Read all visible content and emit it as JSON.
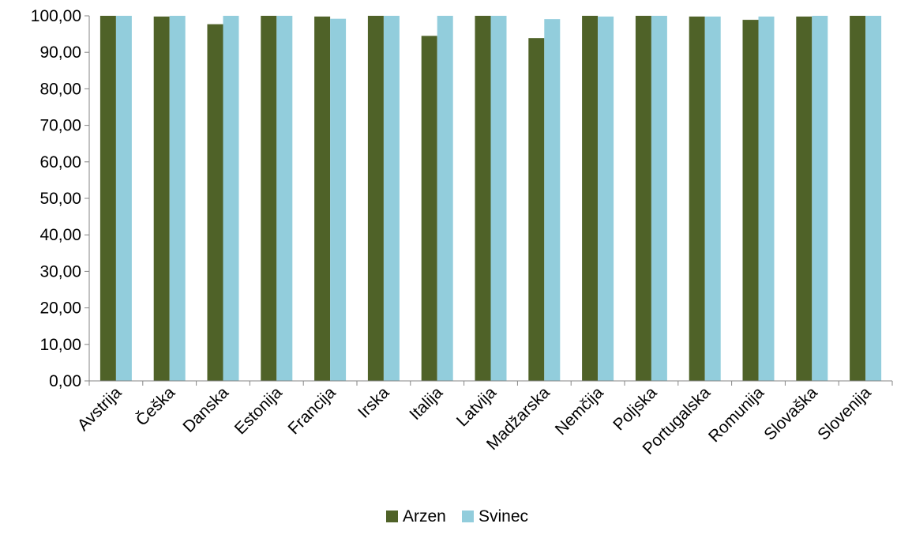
{
  "chart_data": {
    "type": "bar",
    "categories": [
      "Avstrija",
      "Češka",
      "Danska",
      "Estonija",
      "Francija",
      "Irska",
      "Italija",
      "Latvija",
      "Madžarska",
      "Nemčija",
      "Poljska",
      "Portugalska",
      "Romunija",
      "Slovaška",
      "Slovenija"
    ],
    "series": [
      {
        "name": "Arzen",
        "color": "#4f6228",
        "values": [
          100.0,
          99.8,
          97.7,
          100.0,
          99.8,
          100.0,
          94.5,
          100.0,
          93.9,
          100.0,
          100.0,
          99.8,
          98.9,
          99.8,
          100.0
        ]
      },
      {
        "name": "Svinec",
        "color": "#92cddc",
        "values": [
          100.0,
          100.0,
          100.0,
          100.0,
          99.2,
          100.0,
          100.0,
          100.0,
          99.1,
          99.8,
          100.0,
          99.8,
          99.8,
          100.0,
          100.0
        ]
      }
    ],
    "yticks": [
      "0,00",
      "10,00",
      "20,00",
      "30,00",
      "40,00",
      "50,00",
      "60,00",
      "70,00",
      "80,00",
      "90,00",
      "100,00"
    ],
    "ylim": [
      0,
      100
    ],
    "grid": false,
    "legend_position": "bottom-center",
    "title": "",
    "xlabel": "",
    "ylabel": ""
  }
}
